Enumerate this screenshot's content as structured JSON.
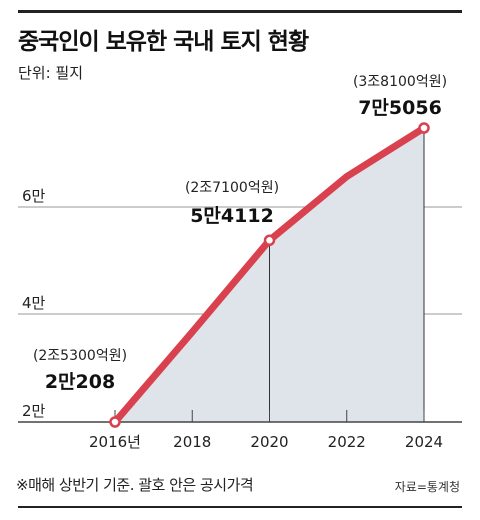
{
  "title": "중국인이 보유한 국내 토지 현황",
  "unit_label": "단위: 필지",
  "footnote": "※매해 상반기 기준. 괄호 안은 공시가격",
  "source": "자료=통계청",
  "colors": {
    "line": "#d9414e",
    "area": "#dfe3ea",
    "grid": "#9a9a9a",
    "axis": "#444444",
    "text": "#111111"
  },
  "chart_data": {
    "type": "area",
    "x": [
      2016,
      2018,
      2020,
      2022,
      2024
    ],
    "values": [
      20208,
      37000,
      54112,
      66000,
      75056
    ],
    "xlim": [
      2016,
      2024
    ],
    "ylim": [
      20000,
      80000
    ],
    "x_tick_labels": [
      "2016년",
      "2018",
      "2020",
      "2022",
      "2024"
    ],
    "y_ticks": [
      {
        "value": 20000,
        "label": "2만"
      },
      {
        "value": 40000,
        "label": "4만"
      },
      {
        "value": 60000,
        "label": "6만"
      }
    ],
    "annotations": [
      {
        "x": 2016,
        "value_label": "2만208",
        "price_label": "(2조5300억원)"
      },
      {
        "x": 2020,
        "value_label": "5만4112",
        "price_label": "(2조7100억원)"
      },
      {
        "x": 2024,
        "value_label": "7만5056",
        "price_label": "(3조8100억원)"
      }
    ],
    "grid": true
  }
}
